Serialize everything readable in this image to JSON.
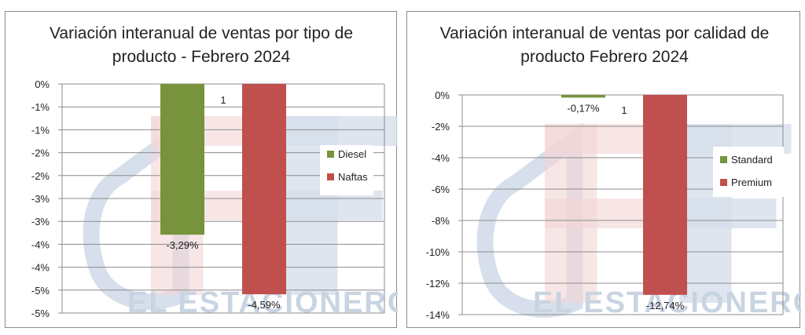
{
  "chart_data": [
    {
      "type": "bar",
      "title_lines": [
        "Variación interanual  de ventas por tipo de",
        "producto - Febrero 2024"
      ],
      "categories": [
        "1"
      ],
      "series": [
        {
          "name": "Diesel",
          "color": "#77933c",
          "values": [
            -3.29
          ],
          "label": "-3,29%"
        },
        {
          "name": "Naftas",
          "color": "#c0504d",
          "values": [
            -4.59
          ],
          "label": "-4,59%"
        }
      ],
      "ylim": [
        -5,
        0
      ],
      "yticks": [
        0,
        -0.5,
        -1,
        -1.5,
        -2,
        -2.5,
        -3,
        -3.5,
        -4,
        -4.5,
        -5
      ],
      "ytick_labels": [
        "0%",
        "-1%",
        "-1%",
        "-2%",
        "-2%",
        "-3%",
        "-3%",
        "-4%",
        "-4%",
        "-5%",
        "-5%"
      ],
      "legend": "right",
      "grid": true
    },
    {
      "type": "bar",
      "title_lines": [
        "Variación interanual de ventas por calidad de",
        "producto Febrero 2024"
      ],
      "categories": [
        "1"
      ],
      "series": [
        {
          "name": "Standard",
          "color": "#77933c",
          "values": [
            -0.17
          ],
          "label": "-0,17%"
        },
        {
          "name": "Premium",
          "color": "#c0504d",
          "values": [
            -12.74
          ],
          "label": "-12,74%"
        }
      ],
      "ylim": [
        -14,
        0
      ],
      "yticks": [
        0,
        -2,
        -4,
        -6,
        -8,
        -10,
        -12,
        -14
      ],
      "ytick_labels": [
        "0%",
        "-2%",
        "-4%",
        "-6%",
        "-8%",
        "-10%",
        "-12%",
        "-14%"
      ],
      "legend": "right",
      "grid": true
    }
  ],
  "watermark": {
    "text": "EL ESTACIONERO",
    "color": "#c9d4e2"
  }
}
